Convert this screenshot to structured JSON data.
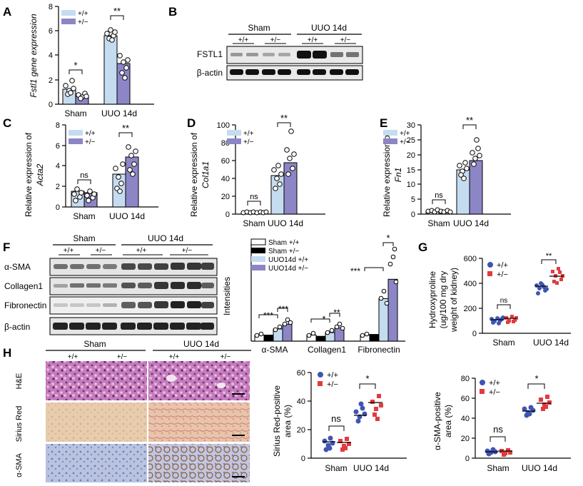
{
  "colors": {
    "wt": "#c5dcf0",
    "het": "#8c86c6",
    "wt_dot": "#3f55b3",
    "het_dot": "#e23b3f",
    "sham_wt": "#ffffff",
    "sham_het": "#000000",
    "uuo_wt": "#c5dcf0",
    "uuo_het": "#8c86c6"
  },
  "genotypes": {
    "wt": "+/+",
    "het": "+/−"
  },
  "groups": {
    "sham": "Sham",
    "uuo": "UUO 14d"
  },
  "panels": {
    "A": {
      "letter": "A",
      "ylabel": "Fstl1 gene expression"
    },
    "B": {
      "letter": "B",
      "header_sham": "Sham",
      "header_uuo": "UUO 14d",
      "lanes": [
        "+/+",
        "+/−",
        "+/+",
        "+/−"
      ],
      "rows": [
        "FSTL1",
        "β-actin"
      ]
    },
    "C": {
      "letter": "C",
      "ylabel_1": "Relative expression of",
      "ylabel_2": "Acta2"
    },
    "D": {
      "letter": "D",
      "ylabel_1": "Relative expression of",
      "ylabel_2": "Col1a1"
    },
    "E": {
      "letter": "E",
      "ylabel_1": "Relative expression of",
      "ylabel_2": "Fn1"
    },
    "F": {
      "letter": "F",
      "header_sham": "Sham",
      "header_uuo": "UUO 14d",
      "lanes": [
        "+/+",
        "+/−",
        "+/+",
        "+/−"
      ],
      "rows": [
        "α-SMA",
        "Collagen1",
        "Fibronectin",
        "β-actin"
      ],
      "ylabel": "Intensities",
      "legend": [
        "Sham +/+",
        "Sham +/−",
        "UUO14d +/+",
        "UUO14d +/−"
      ]
    },
    "G": {
      "letter": "G",
      "ylabel_1": "Hydroxyproline",
      "ylabel_2": "(ug/100 mg dry",
      "ylabel_3": "weight of kidney)"
    },
    "H": {
      "letter": "H",
      "header_sham": "Sham",
      "header_uuo": "UUO 14d",
      "cols": [
        "+/+",
        "+/−",
        "+/+",
        "+/−"
      ],
      "rows": [
        "H&E",
        "Sirius Red",
        "α-SMA"
      ],
      "sirius_ylabel_1": "Sirius Red-positive",
      "sirius_ylabel_2": "area (%)",
      "asma_ylabel_1": "α-SMA-positive",
      "asma_ylabel_2": "area (%)"
    }
  },
  "chart_data": [
    {
      "panel": "A",
      "type": "bar",
      "categories": [
        "Sham",
        "UUO 14d"
      ],
      "series": [
        {
          "name": "+/+",
          "values": [
            1.2,
            5.6
          ]
        },
        {
          "name": "+/−",
          "values": [
            0.65,
            3.3
          ]
        }
      ],
      "ylabel": "Fstl1 gene expression",
      "ylim": [
        0,
        8
      ],
      "yticks": [
        0,
        2,
        4,
        6,
        8
      ],
      "significance": [
        "*",
        "**"
      ],
      "legend": "top-left"
    },
    {
      "panel": "C",
      "type": "bar",
      "categories": [
        "Sham",
        "UUO 14d"
      ],
      "series": [
        {
          "name": "+/+",
          "values": [
            1.5,
            3.2
          ]
        },
        {
          "name": "+/−",
          "values": [
            1.4,
            4.9
          ]
        }
      ],
      "ylabel": "Relative expression of Acta2",
      "ylim": [
        0,
        8
      ],
      "yticks": [
        0,
        2,
        4,
        6,
        8
      ],
      "significance": [
        "ns",
        "**"
      ],
      "legend": "top-left"
    },
    {
      "panel": "D",
      "type": "bar",
      "categories": [
        "Sham",
        "UUO 14d"
      ],
      "series": [
        {
          "name": "+/+",
          "values": [
            1.5,
            43
          ]
        },
        {
          "name": "+/−",
          "values": [
            1.5,
            58
          ]
        }
      ],
      "ylabel": "Relative expression of Col1a1",
      "ylim": [
        0,
        100
      ],
      "yticks": [
        0,
        20,
        40,
        60,
        80,
        100
      ],
      "significance": [
        "ns",
        "**"
      ],
      "legend": "top-left"
    },
    {
      "panel": "E",
      "type": "bar",
      "categories": [
        "Sham",
        "UUO 14d"
      ],
      "series": [
        {
          "name": "+/+",
          "values": [
            1.0,
            15
          ]
        },
        {
          "name": "+/−",
          "values": [
            0.9,
            18.2
          ]
        }
      ],
      "ylabel": "Relative expression of Fn1",
      "ylim": [
        0,
        30
      ],
      "yticks": [
        0,
        5,
        10,
        15,
        20,
        25,
        30
      ],
      "significance": [
        "ns",
        "**"
      ],
      "legend": "top-left"
    },
    {
      "panel": "F",
      "type": "bar",
      "categories": [
        "α-SMA",
        "Collagen1",
        "Fibronectin"
      ],
      "series": [
        {
          "name": "Sham +/+",
          "values": [
            1.0,
            1.0,
            1.0
          ]
        },
        {
          "name": "Sham +/−",
          "values": [
            1.0,
            0.8,
            1.1
          ]
        },
        {
          "name": "UUO14d +/+",
          "values": [
            2.0,
            1.4,
            7.0
          ]
        },
        {
          "name": "UUO14d +/−",
          "values": [
            2.8,
            2.2,
            10.2
          ]
        }
      ],
      "ylabel": "Intensities",
      "ylim": [
        0,
        16
      ],
      "significance": [
        "***",
        "***",
        "*",
        "**",
        "***",
        "*"
      ],
      "legend": "top-left"
    },
    {
      "panel": "G",
      "type": "scatter",
      "categories": [
        "Sham",
        "UUO 14d"
      ],
      "series": [
        {
          "name": "+/+",
          "mean": [
            110,
            380
          ]
        },
        {
          "name": "+/−",
          "mean": [
            120,
            460
          ]
        }
      ],
      "ylabel": "Hydroxyproline (ug/100 mg dry weight of kidney)",
      "ylim": [
        0,
        600
      ],
      "yticks": [
        0,
        200,
        400,
        600
      ],
      "significance": [
        "ns",
        "**"
      ],
      "legend": "top-left"
    },
    {
      "panel": "H-sirius",
      "type": "scatter",
      "categories": [
        "Sham",
        "UUO 14d"
      ],
      "series": [
        {
          "name": "+/+",
          "mean": [
            11.5,
            30
          ]
        },
        {
          "name": "+/−",
          "mean": [
            11,
            39
          ]
        }
      ],
      "ylabel": "Sirius Red-positive area (%)",
      "ylim": [
        0,
        60
      ],
      "yticks": [
        0,
        20,
        40,
        60
      ],
      "significance": [
        "ns",
        "*"
      ],
      "legend": "top-left"
    },
    {
      "panel": "H-asma",
      "type": "scatter",
      "categories": [
        "Sham",
        "UUO 14d"
      ],
      "series": [
        {
          "name": "+/+",
          "mean": [
            6.5,
            47
          ]
        },
        {
          "name": "+/−",
          "mean": [
            7.0,
            55
          ]
        }
      ],
      "ylabel": "α-SMA-positive area (%)",
      "ylim": [
        0,
        80
      ],
      "yticks": [
        0,
        20,
        40,
        60,
        80
      ],
      "significance": [
        "ns",
        "*"
      ],
      "legend": "top-left"
    }
  ]
}
